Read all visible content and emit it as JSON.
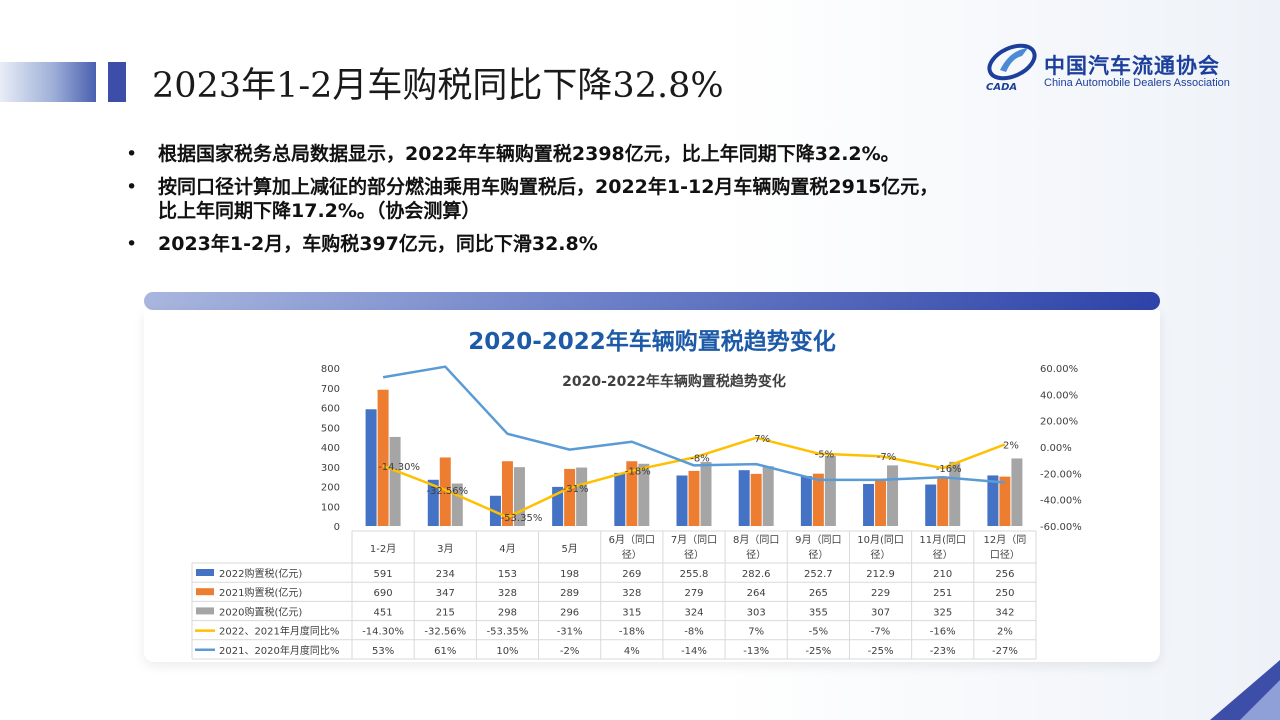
{
  "title": "2023年1-2月车购税同比下降32.8%",
  "logo": {
    "cn": "中国汽车流通协会",
    "en": "China Automobile Dealers Association",
    "mark": "CADA"
  },
  "bullets": [
    {
      "line1": "根据国家税务总局数据显示，2022年车辆购置税2398亿元，比上年同期下降32.2%。",
      "line2": ""
    },
    {
      "line1": "按同口径计算加上减征的部分燃油乘用车购置税后，2022年1-12月车辆购置税2915亿元，",
      "line2": "比上年同期下降17.2%。（协会测算）"
    },
    {
      "line1": "2023年1-2月，车购税397亿元，同比下滑32.8%",
      "line2": ""
    }
  ],
  "panel_title": "2020-2022年车辆购置税趋势变化",
  "chart_data": {
    "type": "bar",
    "title": "2020-2022年车辆购置税趋势变化",
    "categories": [
      "1-2月",
      "3月",
      "4月",
      "5月",
      "6月（同口径",
      "7月（同口径",
      "8月（同口径",
      "9月（同口径",
      "10月(同口径",
      "11月(同口径",
      "12月（同口径"
    ],
    "category_lines": [
      [
        "1-2月"
      ],
      [
        "3月"
      ],
      [
        "4月"
      ],
      [
        "5月"
      ],
      [
        "6月（同口",
        "径）"
      ],
      [
        "7月（同口",
        "径）"
      ],
      [
        "8月（同口",
        "径）"
      ],
      [
        "9月（同口",
        "径）"
      ],
      [
        "10月(同口",
        "径）"
      ],
      [
        "11月(同口",
        "径）"
      ],
      [
        "12月（同",
        "口径）"
      ]
    ],
    "series": [
      {
        "name": "2022购置税(亿元)",
        "type": "bar",
        "color": "#4472c4",
        "values": [
          591,
          234,
          153,
          198,
          269,
          255.8,
          282.6,
          252.7,
          212.9,
          210,
          256
        ],
        "labels": [
          "591",
          "234",
          "153",
          "198",
          "269",
          "255.8",
          "282.6",
          "252.7",
          "212.9",
          "210",
          "256"
        ]
      },
      {
        "name": "2021购置税(亿元)",
        "type": "bar",
        "color": "#ed7d31",
        "values": [
          690,
          347,
          328,
          289,
          328,
          279,
          264,
          265,
          229,
          251,
          250
        ],
        "labels": [
          "690",
          "347",
          "328",
          "289",
          "328",
          "279",
          "264",
          "265",
          "229",
          "251",
          "250"
        ]
      },
      {
        "name": "2020购置税(亿元)",
        "type": "bar",
        "color": "#a5a5a5",
        "values": [
          451,
          215,
          298,
          296,
          315,
          324,
          303,
          355,
          307,
          325,
          342
        ],
        "labels": [
          "451",
          "215",
          "298",
          "296",
          "315",
          "324",
          "303",
          "355",
          "307",
          "325",
          "342"
        ]
      },
      {
        "name": "2022、2021年月度同比%",
        "type": "line",
        "axis": "right",
        "color": "#ffc000",
        "values": [
          -14.3,
          -32.56,
          -53.35,
          -31,
          -18,
          -8,
          7,
          -5,
          -7,
          -16,
          2
        ],
        "labels": [
          "-14.30%",
          "-32.56%",
          "-53.35%",
          "-31%",
          "-18%",
          "-8%",
          "7%",
          "-5%",
          "-7%",
          "-16%",
          "2%"
        ]
      },
      {
        "name": "2021、2020年月度同比%",
        "type": "line",
        "axis": "right",
        "color": "#5b9bd5",
        "values": [
          53,
          61,
          10,
          -2,
          4,
          -14,
          -13,
          -25,
          -25,
          -23,
          -27
        ],
        "labels": [
          "53%",
          "61%",
          "10%",
          "-2%",
          "4%",
          "-14%",
          "-13%",
          "-25%",
          "-25%",
          "-23%",
          "-27%"
        ]
      }
    ],
    "left_axis": {
      "ylim": [
        0,
        800
      ],
      "ticks": [
        "0",
        "100",
        "200",
        "300",
        "400",
        "500",
        "600",
        "700",
        "800"
      ]
    },
    "right_axis": {
      "ylim": [
        -60,
        60
      ],
      "ticks": [
        "-60.00%",
        "-40.00%",
        "-20.00%",
        "0.00%",
        "20.00%",
        "40.00%",
        "60.00%"
      ]
    },
    "grid": false,
    "legend": "data-table"
  }
}
